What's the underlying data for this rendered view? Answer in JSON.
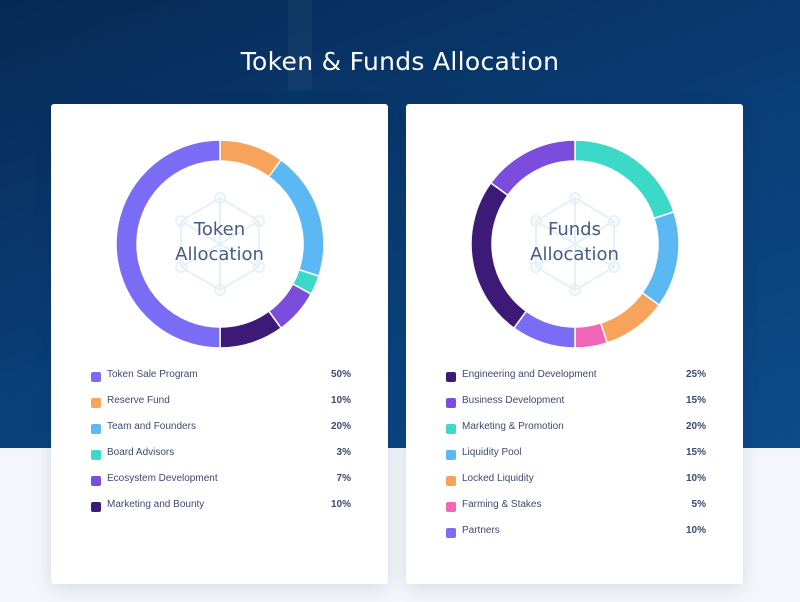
{
  "header": {
    "title": "Token & Funds Allocation"
  },
  "chart_data": [
    {
      "type": "pie",
      "center_label": [
        "Token",
        "Allocation"
      ],
      "categories": [
        "Token Sale Program",
        "Reserve Fund",
        "Team and Founders",
        "Board Advisors",
        "Ecosystem Development",
        "Marketing and Bounty"
      ],
      "values": [
        50,
        10,
        20,
        3,
        7,
        10
      ],
      "value_labels": [
        "50%",
        "10%",
        "20%",
        "3%",
        "7%",
        "10%"
      ],
      "colors": [
        "#7b6cf6",
        "#f7a35c",
        "#5bb8f2",
        "#3dd9c8",
        "#7c4ddc",
        "#3e1a78"
      ],
      "drawing_order": [
        1,
        2,
        3,
        4,
        5,
        0
      ]
    },
    {
      "type": "pie",
      "center_label": [
        "Funds",
        "Allocation"
      ],
      "categories": [
        "Engineering and Development",
        "Business Development",
        "Marketing & Promotion",
        "Liquidity Pool",
        "Locked Liquidity",
        "Farming & Stakes",
        "Partners"
      ],
      "values": [
        25,
        15,
        20,
        15,
        10,
        5,
        10
      ],
      "value_labels": [
        "25%",
        "15%",
        "20%",
        "15%",
        "10%",
        "5%",
        "10%"
      ],
      "colors": [
        "#3e1a78",
        "#7c4ddc",
        "#3dd9c8",
        "#5bb8f2",
        "#f7a35c",
        "#f065b8",
        "#7b6cf6"
      ],
      "drawing_order": [
        2,
        3,
        4,
        5,
        6,
        0,
        1
      ]
    }
  ]
}
